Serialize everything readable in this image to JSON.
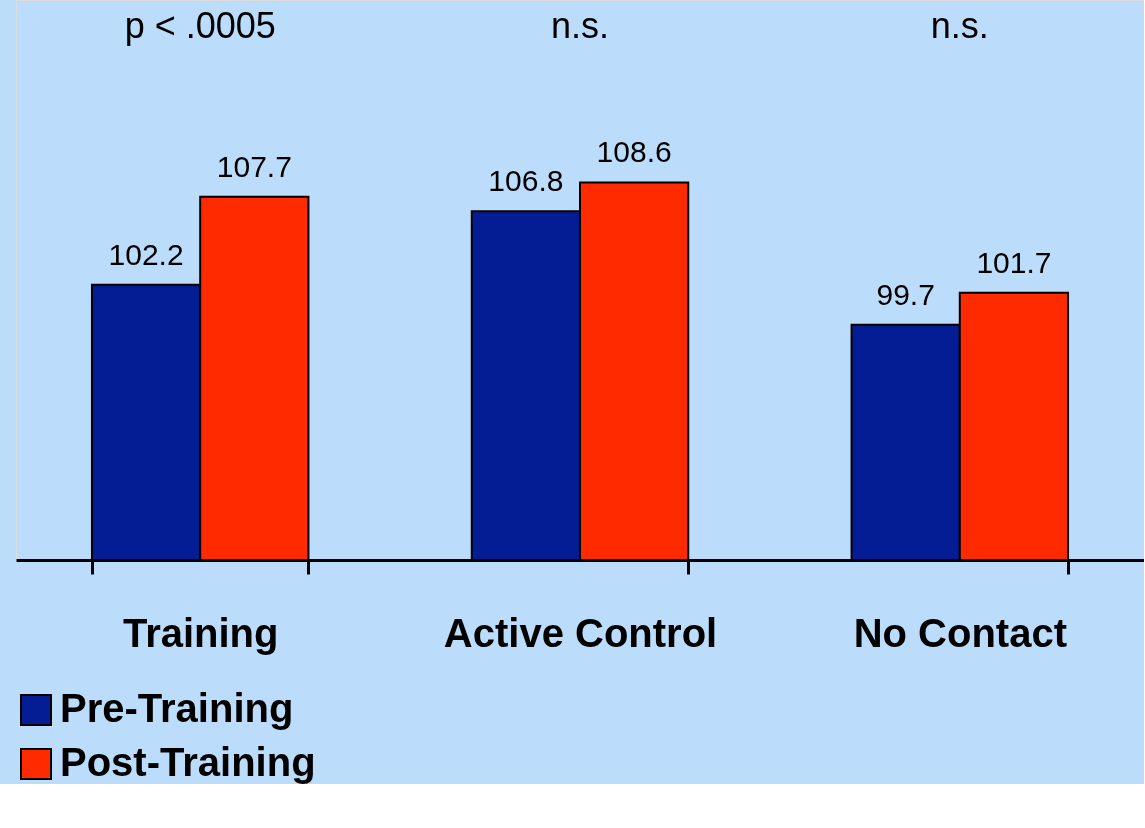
{
  "chart_data": {
    "type": "bar",
    "categories": [
      "Training",
      "Active Control",
      "No Contact"
    ],
    "series": [
      {
        "name": "Pre-Training",
        "color": "#041c94",
        "values": [
          102.2,
          106.8,
          99.7
        ]
      },
      {
        "name": "Post-Training",
        "color": "#ff2a00",
        "values": [
          107.7,
          108.6,
          101.7
        ]
      }
    ],
    "ylim": [
      85,
      120
    ],
    "tick_labels": "x",
    "data_labels": true,
    "grid": false,
    "legend": "bottom left",
    "annotations": [
      "p < .0005",
      "n.s.",
      "n.s."
    ]
  }
}
